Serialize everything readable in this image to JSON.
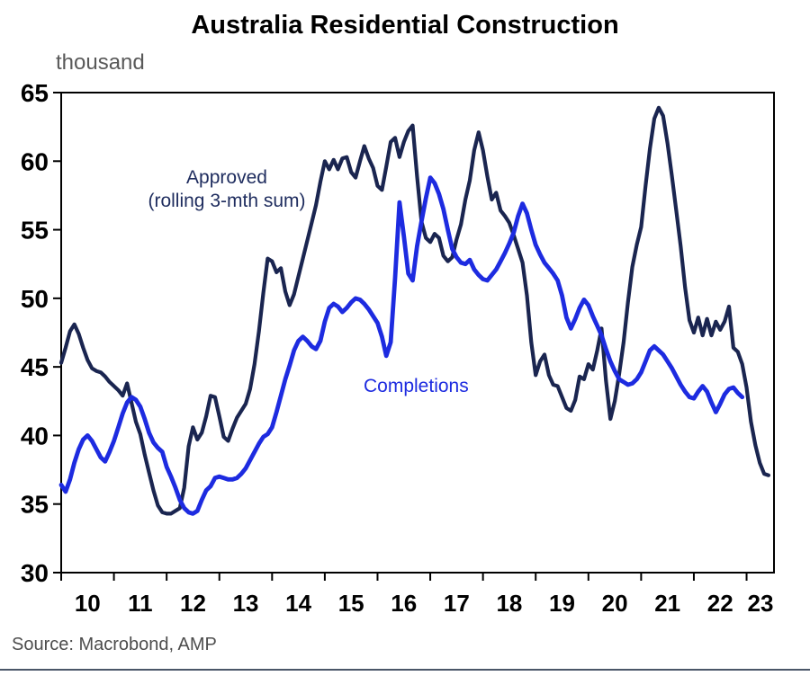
{
  "chart_data": {
    "type": "line",
    "title": "Australia Residential Construction",
    "y_axis_unit": "thousand",
    "source": "Source: Macrobond, AMP",
    "ylim": [
      30,
      65
    ],
    "y_ticks": [
      65,
      60,
      55,
      50,
      45,
      40,
      35,
      30
    ],
    "x_tick_labels": [
      "10",
      "11",
      "12",
      "13",
      "14",
      "15",
      "16",
      "17",
      "18",
      "19",
      "20",
      "21",
      "22",
      "23"
    ],
    "x_start_year": 2010.0,
    "x_end_year": 2023.52,
    "frequency": "monthly",
    "grid": "off",
    "legend_position": "inline-annotations",
    "series": [
      {
        "name": "Approved (rolling 3-mth sum)",
        "label_line1": "Approved",
        "label_line2": "(rolling 3-mth sum)",
        "color": "#1a2550",
        "values": [
          45.3,
          46.4,
          47.6,
          48.1,
          47.4,
          46.4,
          45.5,
          44.9,
          44.7,
          44.6,
          44.3,
          43.9,
          43.6,
          43.3,
          42.9,
          43.8,
          42.4,
          41.0,
          40.1,
          38.6,
          37.3,
          36.0,
          34.9,
          34.4,
          34.3,
          34.3,
          34.5,
          34.7,
          36.2,
          39.2,
          40.6,
          39.7,
          40.2,
          41.4,
          42.9,
          42.8,
          41.4,
          39.9,
          39.6,
          40.5,
          41.3,
          41.8,
          42.3,
          43.4,
          45.2,
          47.6,
          50.4,
          52.9,
          52.7,
          51.9,
          52.2,
          50.5,
          49.5,
          50.3,
          51.6,
          52.9,
          54.2,
          55.5,
          56.8,
          58.5,
          60.0,
          59.4,
          60.1,
          59.4,
          60.2,
          60.3,
          59.2,
          58.8,
          60.0,
          61.1,
          60.2,
          59.5,
          58.2,
          57.9,
          59.6,
          61.4,
          61.7,
          60.3,
          61.4,
          62.2,
          62.6,
          58.9,
          55.6,
          54.4,
          54.1,
          54.7,
          54.4,
          53.1,
          52.7,
          53.0,
          54.3,
          55.4,
          57.2,
          58.6,
          60.8,
          62.1,
          60.8,
          58.9,
          57.2,
          57.7,
          56.4,
          56.0,
          55.5,
          54.6,
          53.6,
          52.6,
          50.2,
          46.8,
          44.4,
          45.4,
          45.9,
          44.4,
          43.7,
          43.6,
          42.8,
          42.0,
          41.8,
          42.6,
          44.3,
          44.1,
          45.2,
          44.8,
          46.2,
          47.8,
          44.0,
          41.2,
          42.5,
          44.5,
          46.8,
          49.7,
          52.3,
          53.9,
          55.2,
          58.2,
          60.9,
          63.1,
          63.9,
          63.3,
          61.3,
          58.9,
          56.4,
          53.8,
          50.8,
          48.4,
          47.5,
          48.6,
          47.3,
          48.5,
          47.3,
          48.3,
          47.7,
          48.3,
          49.4,
          46.4,
          46.1,
          45.2,
          43.5,
          41.0,
          39.3,
          38.0,
          37.2,
          37.1
        ]
      },
      {
        "name": "Completions",
        "label": "Completions",
        "color": "#1d2be0",
        "values": [
          36.4,
          35.9,
          36.8,
          38.0,
          39.0,
          39.7,
          40.0,
          39.6,
          39.0,
          38.4,
          38.1,
          38.8,
          39.6,
          40.6,
          41.6,
          42.4,
          42.8,
          42.6,
          42.1,
          41.2,
          40.2,
          39.5,
          39.1,
          38.8,
          37.7,
          37.0,
          36.2,
          35.3,
          34.7,
          34.4,
          34.3,
          34.5,
          35.3,
          36.0,
          36.3,
          36.9,
          37.0,
          36.9,
          36.8,
          36.8,
          36.9,
          37.2,
          37.6,
          38.2,
          38.8,
          39.4,
          39.9,
          40.1,
          40.6,
          41.7,
          42.9,
          44.1,
          45.1,
          46.2,
          46.9,
          47.2,
          46.9,
          46.5,
          46.3,
          46.9,
          48.3,
          49.3,
          49.6,
          49.4,
          49.0,
          49.3,
          49.7,
          50.0,
          49.9,
          49.6,
          49.2,
          48.7,
          48.2,
          47.2,
          45.8,
          46.8,
          51.5,
          57.0,
          54.5,
          51.8,
          51.3,
          53.8,
          55.6,
          57.3,
          58.8,
          58.4,
          57.6,
          56.5,
          55.0,
          53.6,
          53.0,
          52.6,
          52.5,
          52.8,
          52.1,
          51.7,
          51.4,
          51.3,
          51.7,
          52.1,
          52.7,
          53.3,
          54.0,
          54.8,
          56.0,
          56.9,
          56.2,
          55.0,
          53.9,
          53.2,
          52.6,
          52.2,
          51.8,
          51.3,
          50.2,
          48.6,
          47.8,
          48.5,
          49.3,
          49.9,
          49.5,
          48.7,
          48.0,
          47.3,
          46.3,
          45.4,
          44.7,
          44.1,
          43.9,
          43.7,
          43.8,
          44.1,
          44.6,
          45.4,
          46.2,
          46.5,
          46.2,
          45.9,
          45.4,
          44.9,
          44.3,
          43.7,
          43.2,
          42.8,
          42.7,
          43.2,
          43.6,
          43.2,
          42.4,
          41.7,
          42.3,
          43.0,
          43.4,
          43.5,
          43.1,
          42.8
        ]
      }
    ]
  }
}
